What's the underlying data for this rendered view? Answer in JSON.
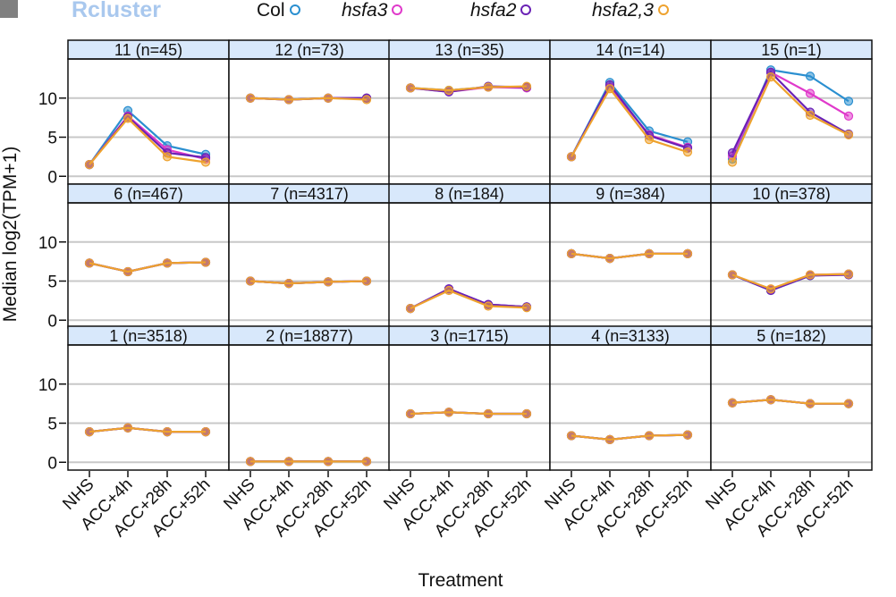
{
  "legend": {
    "title": "Rcluster",
    "items": [
      {
        "label": "Col",
        "color": "#2a8fd0",
        "italic": false
      },
      {
        "label": "hsfa3",
        "color": "#e03acb",
        "italic": true
      },
      {
        "label": "hsfa2",
        "color": "#6a22b5",
        "italic": true
      },
      {
        "label": "hsfa2,3",
        "color": "#eea22e",
        "italic": true
      }
    ]
  },
  "axes": {
    "ylabel": "Median log2(TPM+1)",
    "xlabel": "Treatment"
  },
  "chart_data": {
    "type": "line",
    "title": "",
    "xlabel": "Treatment",
    "ylabel": "Median log2(TPM+1)",
    "categories": [
      "NHS",
      "ACC+4h",
      "ACC+28h",
      "ACC+52h"
    ],
    "series_names": [
      "Col",
      "hsfa3",
      "hsfa2",
      "hsfa2,3"
    ],
    "ylim": [
      -1,
      15
    ],
    "yticks": [
      0,
      5,
      10
    ],
    "grid": true,
    "panels": [
      {
        "label": "11 (n=45)",
        "series": [
          {
            "name": "Col",
            "values": [
              1.5,
              8.4,
              3.9,
              2.8
            ]
          },
          {
            "name": "hsfa3",
            "values": [
              1.5,
              7.7,
              3.4,
              2.2
            ]
          },
          {
            "name": "hsfa2",
            "values": [
              1.5,
              7.6,
              3.0,
              2.4
            ]
          },
          {
            "name": "hsfa2,3",
            "values": [
              1.5,
              7.4,
              2.5,
              1.8
            ]
          }
        ]
      },
      {
        "label": "12 (n=73)",
        "series": [
          {
            "name": "Col",
            "values": [
              10.0,
              9.8,
              10.0,
              10.0
            ]
          },
          {
            "name": "hsfa3",
            "values": [
              10.0,
              9.8,
              10.0,
              10.0
            ]
          },
          {
            "name": "hsfa2",
            "values": [
              10.0,
              9.8,
              10.0,
              10.0
            ]
          },
          {
            "name": "hsfa2,3",
            "values": [
              10.0,
              9.8,
              10.0,
              9.8
            ]
          }
        ]
      },
      {
        "label": "13 (n=35)",
        "series": [
          {
            "name": "Col",
            "values": [
              11.3,
              11.0,
              11.4,
              11.4
            ]
          },
          {
            "name": "hsfa3",
            "values": [
              11.3,
              10.8,
              11.4,
              11.3
            ]
          },
          {
            "name": "hsfa2",
            "values": [
              11.3,
              10.8,
              11.5,
              11.4
            ]
          },
          {
            "name": "hsfa2,3",
            "values": [
              11.3,
              11.0,
              11.4,
              11.5
            ]
          }
        ]
      },
      {
        "label": "14 (n=14)",
        "series": [
          {
            "name": "Col",
            "values": [
              2.5,
              12.0,
              5.8,
              4.4
            ]
          },
          {
            "name": "hsfa3",
            "values": [
              2.5,
              11.4,
              5.3,
              3.7
            ]
          },
          {
            "name": "hsfa2",
            "values": [
              2.5,
              11.7,
              5.2,
              3.6
            ]
          },
          {
            "name": "hsfa2,3",
            "values": [
              2.5,
              11.2,
              4.7,
              3.1
            ]
          }
        ]
      },
      {
        "label": "15 (n=1)",
        "series": [
          {
            "name": "Col",
            "values": [
              2.2,
              13.6,
              12.8,
              9.6
            ]
          },
          {
            "name": "hsfa3",
            "values": [
              2.6,
              13.3,
              10.6,
              7.7
            ]
          },
          {
            "name": "hsfa2",
            "values": [
              3.0,
              13.3,
              8.2,
              5.4
            ]
          },
          {
            "name": "hsfa2,3",
            "values": [
              1.8,
              12.7,
              7.8,
              5.3
            ]
          }
        ]
      },
      {
        "label": "6 (n=467)",
        "series": [
          {
            "name": "Col",
            "values": [
              7.3,
              6.2,
              7.3,
              7.4
            ]
          },
          {
            "name": "hsfa3",
            "values": [
              7.3,
              6.2,
              7.3,
              7.4
            ]
          },
          {
            "name": "hsfa2",
            "values": [
              7.3,
              6.2,
              7.3,
              7.4
            ]
          },
          {
            "name": "hsfa2,3",
            "values": [
              7.3,
              6.2,
              7.3,
              7.4
            ]
          }
        ]
      },
      {
        "label": "7 (n=4317)",
        "series": [
          {
            "name": "Col",
            "values": [
              5.0,
              4.7,
              4.9,
              5.0
            ]
          },
          {
            "name": "hsfa3",
            "values": [
              5.0,
              4.7,
              4.9,
              5.0
            ]
          },
          {
            "name": "hsfa2",
            "values": [
              5.0,
              4.7,
              4.9,
              5.0
            ]
          },
          {
            "name": "hsfa2,3",
            "values": [
              5.0,
              4.7,
              4.9,
              5.0
            ]
          }
        ]
      },
      {
        "label": "8 (n=184)",
        "series": [
          {
            "name": "Col",
            "values": [
              1.5,
              4.0,
              2.0,
              1.7
            ]
          },
          {
            "name": "hsfa3",
            "values": [
              1.5,
              4.0,
              2.0,
              1.7
            ]
          },
          {
            "name": "hsfa2",
            "values": [
              1.5,
              4.0,
              2.0,
              1.7
            ]
          },
          {
            "name": "hsfa2,3",
            "values": [
              1.5,
              3.8,
              1.8,
              1.6
            ]
          }
        ]
      },
      {
        "label": "9 (n=384)",
        "series": [
          {
            "name": "Col",
            "values": [
              8.5,
              7.9,
              8.5,
              8.5
            ]
          },
          {
            "name": "hsfa3",
            "values": [
              8.5,
              7.9,
              8.5,
              8.5
            ]
          },
          {
            "name": "hsfa2",
            "values": [
              8.5,
              7.9,
              8.5,
              8.5
            ]
          },
          {
            "name": "hsfa2,3",
            "values": [
              8.5,
              7.9,
              8.5,
              8.5
            ]
          }
        ]
      },
      {
        "label": "10 (n=378)",
        "series": [
          {
            "name": "Col",
            "values": [
              5.8,
              3.8,
              5.7,
              5.9
            ]
          },
          {
            "name": "hsfa3",
            "values": [
              5.8,
              3.9,
              5.8,
              5.9
            ]
          },
          {
            "name": "hsfa2",
            "values": [
              5.8,
              3.8,
              5.7,
              5.8
            ]
          },
          {
            "name": "hsfa2,3",
            "values": [
              5.8,
              4.0,
              5.8,
              5.9
            ]
          }
        ]
      },
      {
        "label": "1 (n=3518)",
        "series": [
          {
            "name": "Col",
            "values": [
              3.9,
              4.4,
              3.9,
              3.9
            ]
          },
          {
            "name": "hsfa3",
            "values": [
              3.9,
              4.4,
              3.9,
              3.9
            ]
          },
          {
            "name": "hsfa2",
            "values": [
              3.9,
              4.4,
              3.9,
              3.9
            ]
          },
          {
            "name": "hsfa2,3",
            "values": [
              3.9,
              4.4,
              3.9,
              3.9
            ]
          }
        ]
      },
      {
        "label": "2 (n=18877)",
        "series": [
          {
            "name": "Col",
            "values": [
              0.1,
              0.1,
              0.1,
              0.1
            ]
          },
          {
            "name": "hsfa3",
            "values": [
              0.1,
              0.1,
              0.1,
              0.1
            ]
          },
          {
            "name": "hsfa2",
            "values": [
              0.1,
              0.1,
              0.1,
              0.1
            ]
          },
          {
            "name": "hsfa2,3",
            "values": [
              0.1,
              0.1,
              0.1,
              0.1
            ]
          }
        ]
      },
      {
        "label": "3 (n=1715)",
        "series": [
          {
            "name": "Col",
            "values": [
              6.2,
              6.4,
              6.2,
              6.2
            ]
          },
          {
            "name": "hsfa3",
            "values": [
              6.2,
              6.4,
              6.2,
              6.2
            ]
          },
          {
            "name": "hsfa2",
            "values": [
              6.2,
              6.4,
              6.2,
              6.2
            ]
          },
          {
            "name": "hsfa2,3",
            "values": [
              6.2,
              6.4,
              6.2,
              6.2
            ]
          }
        ]
      },
      {
        "label": "4 (n=3133)",
        "series": [
          {
            "name": "Col",
            "values": [
              3.4,
              2.9,
              3.4,
              3.5
            ]
          },
          {
            "name": "hsfa3",
            "values": [
              3.4,
              2.9,
              3.4,
              3.5
            ]
          },
          {
            "name": "hsfa2",
            "values": [
              3.4,
              2.9,
              3.4,
              3.5
            ]
          },
          {
            "name": "hsfa2,3",
            "values": [
              3.4,
              2.9,
              3.4,
              3.5
            ]
          }
        ]
      },
      {
        "label": "5 (n=182)",
        "series": [
          {
            "name": "Col",
            "values": [
              7.6,
              8.0,
              7.5,
              7.5
            ]
          },
          {
            "name": "hsfa3",
            "values": [
              7.6,
              8.0,
              7.5,
              7.5
            ]
          },
          {
            "name": "hsfa2",
            "values": [
              7.6,
              8.0,
              7.5,
              7.5
            ]
          },
          {
            "name": "hsfa2,3",
            "values": [
              7.6,
              8.0,
              7.5,
              7.5
            ]
          }
        ]
      }
    ]
  }
}
